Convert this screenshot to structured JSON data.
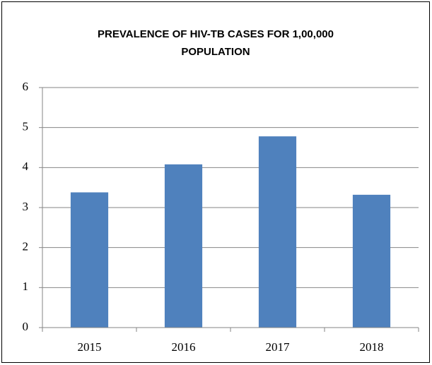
{
  "chart_data": {
    "type": "bar",
    "title": "PREVALENCE OF HIV-TB CASES FOR 1,00,000 POPULATION",
    "categories": [
      "2015",
      "2016",
      "2017",
      "2018"
    ],
    "values": [
      3.38,
      4.08,
      4.78,
      3.32
    ],
    "color": "#4f81bd",
    "ylim": [
      0,
      6
    ],
    "yticks": [
      0,
      1,
      2,
      3,
      4,
      5,
      6
    ],
    "grid": true
  }
}
